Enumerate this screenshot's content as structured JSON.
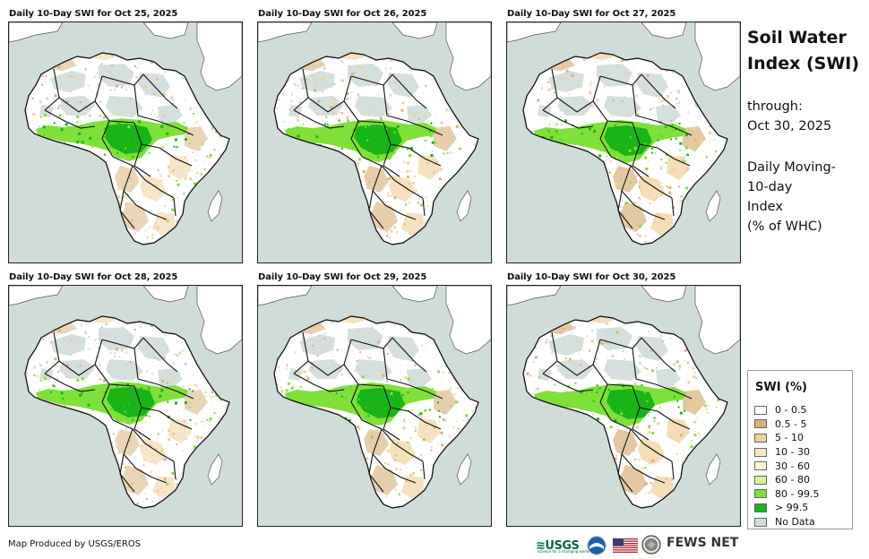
{
  "panels": [
    {
      "title": "Daily 10-Day SWI for Oct 25, 2025",
      "variant": 0
    },
    {
      "title": "Daily 10-Day SWI for Oct 26, 2025",
      "variant": 1
    },
    {
      "title": "Daily 10-Day SWI for Oct 27, 2025",
      "variant": 2
    },
    {
      "title": "Daily 10-Day SWI for Oct 28, 2025",
      "variant": 3
    },
    {
      "title": "Daily 10-Day SWI for Oct 29, 2025",
      "variant": 4
    },
    {
      "title": "Daily 10-Day SWI for Oct 30, 2025",
      "variant": 5
    }
  ],
  "side": {
    "title_line1": "Soil Water",
    "title_line2": "Index (SWI)",
    "through_label": "through:",
    "through_date": "Oct 30, 2025",
    "desc_line1": "Daily Moving-",
    "desc_line2": "10-day",
    "desc_line3": "Index",
    "desc_line4": "(% of WHC)"
  },
  "legend": {
    "title": "SWI (%)",
    "items": [
      {
        "label": "0 - 0.5",
        "color": "#ffffff"
      },
      {
        "label": "0.5 - 5",
        "color": "#d9b27a"
      },
      {
        "label": "5 - 10",
        "color": "#f0cf9a"
      },
      {
        "label": "10 - 30",
        "color": "#f9e6c4"
      },
      {
        "label": "30 - 60",
        "color": "#fbf7d0"
      },
      {
        "label": "60 - 80",
        "color": "#d6f59a"
      },
      {
        "label": "80 - 99.5",
        "color": "#7fe03a"
      },
      {
        "label": "> 99.5",
        "color": "#18b418"
      },
      {
        "label": "No Data",
        "color": "#d0dcd8"
      }
    ]
  },
  "footer": {
    "credit": "Map Produced by USGS/EROS",
    "usgs": "USGS",
    "usgs_tagline": "science for a changing world",
    "fews": "FEWS NET"
  },
  "colors": {
    "ocean": "#d0dcd8",
    "land": "#ffffff",
    "sahara_nodata": "#d0dcd8",
    "wet_green": "#18b418",
    "light_green": "#7fe03a",
    "dry_tan": "#f0cf9a",
    "dark_tan": "#d9b27a",
    "border": "#111111"
  }
}
